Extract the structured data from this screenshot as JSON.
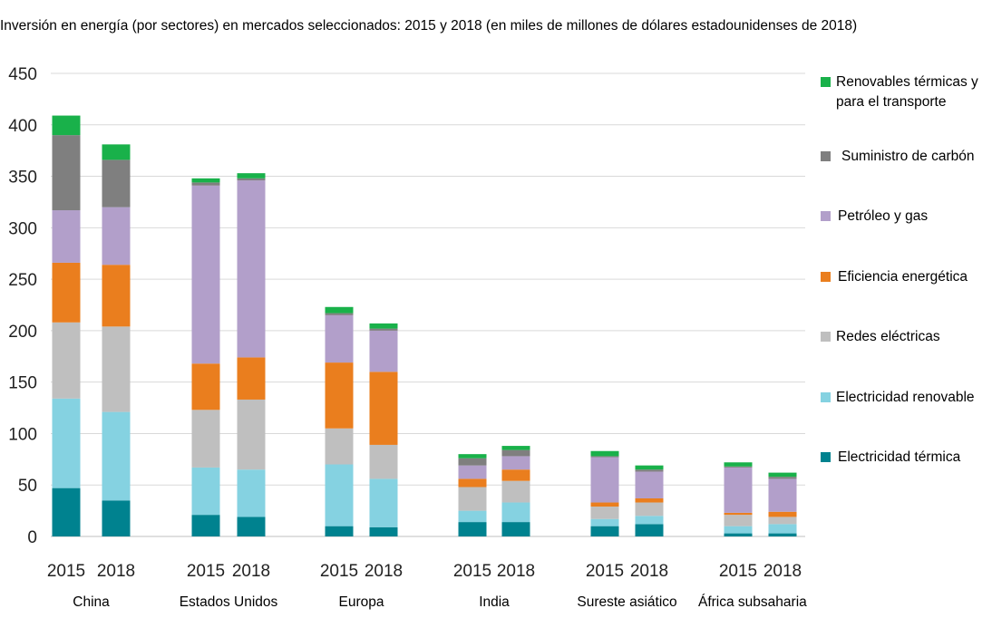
{
  "title": "Inversión en energía (por sectores) en mercados seleccionados: 2015 y 2018 (en miles de millones de dólares estadounidenses de 2018)",
  "chart_data": {
    "type": "bar",
    "stacked": true,
    "title": "Inversión en energía (por sectores) en mercados seleccionados: 2015 y 2018 (en miles de millones de dólares estadounidenses de 2018)",
    "ylim": [
      0,
      450
    ],
    "yticks": [
      0,
      50,
      100,
      150,
      200,
      250,
      300,
      350,
      400,
      450
    ],
    "grid": true,
    "legend_position": "right",
    "groups": [
      "China",
      "Estados Unidos",
      "Europa",
      "India",
      "Sureste asiático",
      "África subsahariana"
    ],
    "years": [
      "2015",
      "2018"
    ],
    "categories": [
      "China 2015",
      "China 2018",
      "Estados Unidos 2015",
      "Estados Unidos 2018",
      "Europa 2015",
      "Europa 2018",
      "India 2015",
      "India 2018",
      "Sureste asiático 2015",
      "Sureste asiático 2018",
      "África subsahariana 2015",
      "África subsahariana 2018"
    ],
    "series": [
      {
        "name": "Electricidad térmica",
        "color": "#00828f",
        "values": [
          47,
          35,
          21,
          19,
          10,
          9,
          14,
          14,
          10,
          12,
          3,
          3
        ]
      },
      {
        "name": "Electricidad renovable",
        "color": "#85d2e1",
        "values": [
          87,
          86,
          46,
          46,
          60,
          47,
          11,
          19,
          7,
          8,
          7,
          9
        ]
      },
      {
        "name": "Redes eléctricas",
        "color": "#bfbfbf",
        "values": [
          74,
          83,
          56,
          68,
          35,
          33,
          23,
          21,
          12,
          13,
          11,
          7
        ]
      },
      {
        "name": "Eficiencia energética",
        "color": "#ea7e1e",
        "values": [
          58,
          60,
          45,
          41,
          64,
          71,
          8,
          11,
          4,
          4,
          2,
          5
        ]
      },
      {
        "name": "Petróleo y gas",
        "color": "#b29fca",
        "values": [
          51,
          56,
          173,
          172,
          46,
          40,
          13,
          13,
          44,
          26,
          44,
          32
        ]
      },
      {
        "name": "Suministro de carbón",
        "color": "#7f7f7f",
        "values": [
          73,
          46,
          3,
          2,
          2,
          2,
          7,
          6,
          1,
          2,
          1,
          2
        ]
      },
      {
        "name": "Renovables térmicas y para el transporte",
        "color": "#19b14a",
        "values": [
          19,
          15,
          4,
          5,
          6,
          5,
          4,
          4,
          5,
          4,
          4,
          4
        ]
      }
    ]
  },
  "legend": [
    {
      "label": "Renovables térmicas y para el transporte",
      "color": "#19b14a"
    },
    {
      "label": "Suministro de carbón",
      "color": "#7f7f7f"
    },
    {
      "label": "Petróleo y gas",
      "color": "#b29fca"
    },
    {
      "label": "Eficiencia energética",
      "color": "#ea7e1e"
    },
    {
      "label": "Redes eléctricas",
      "color": "#bfbfbf"
    },
    {
      "label": "Electricidad renovable",
      "color": "#85d2e1"
    },
    {
      "label": "Electricidad térmica",
      "color": "#00828f"
    }
  ]
}
